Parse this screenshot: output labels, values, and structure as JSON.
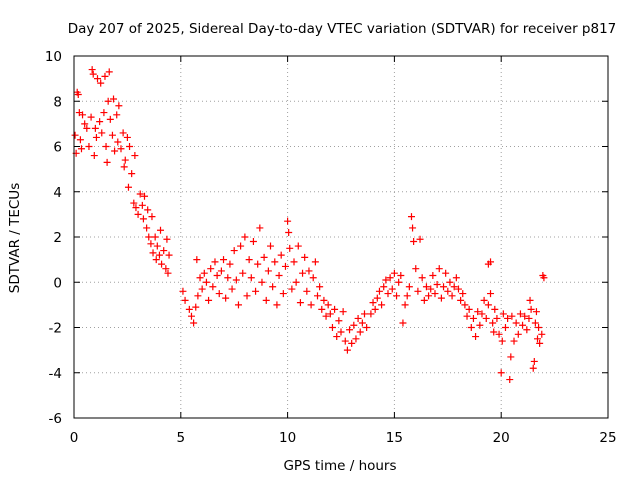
{
  "chart_data": {
    "type": "scatter",
    "title": "Day 207 of 2025, Sidereal Day-to-day VTEC variation (SDTVAR) for receiver p817",
    "xlabel": "GPS time / hours",
    "ylabel": "SDTVAR / TECUs",
    "xlim": [
      0,
      25
    ],
    "ylim": [
      -6,
      10
    ],
    "xticks": [
      0,
      5,
      10,
      15,
      20,
      25
    ],
    "yticks": [
      -6,
      -4,
      -2,
      0,
      2,
      4,
      6,
      8,
      10
    ],
    "xtick_labels": [
      "0",
      "5",
      "10",
      "15",
      "20",
      "25"
    ],
    "ytick_labels": [
      "-6",
      "-4",
      "-2",
      "0",
      "2",
      "4",
      "6",
      "8",
      "10"
    ],
    "grid": true,
    "marker": "plus",
    "color": "#ff0000",
    "series": [
      {
        "name": "SDTVAR",
        "points": [
          [
            0.05,
            6.5
          ],
          [
            0.1,
            5.7
          ],
          [
            0.15,
            8.4
          ],
          [
            0.2,
            8.3
          ],
          [
            0.25,
            7.5
          ],
          [
            0.3,
            6.3
          ],
          [
            0.35,
            5.9
          ],
          [
            0.4,
            7.4
          ],
          [
            0.5,
            7.0
          ],
          [
            0.6,
            6.8
          ],
          [
            0.7,
            6.0
          ],
          [
            0.8,
            7.3
          ],
          [
            0.85,
            9.4
          ],
          [
            0.9,
            9.2
          ],
          [
            0.95,
            5.6
          ],
          [
            1.0,
            6.8
          ],
          [
            1.05,
            6.4
          ],
          [
            1.1,
            9.0
          ],
          [
            1.2,
            7.1
          ],
          [
            1.25,
            8.8
          ],
          [
            1.3,
            6.6
          ],
          [
            1.4,
            7.5
          ],
          [
            1.45,
            9.1
          ],
          [
            1.5,
            6.0
          ],
          [
            1.55,
            5.3
          ],
          [
            1.6,
            8.0
          ],
          [
            1.65,
            9.3
          ],
          [
            1.7,
            7.2
          ],
          [
            1.8,
            6.5
          ],
          [
            1.85,
            8.1
          ],
          [
            1.9,
            5.8
          ],
          [
            2.0,
            7.4
          ],
          [
            2.05,
            6.2
          ],
          [
            2.1,
            7.8
          ],
          [
            2.2,
            5.9
          ],
          [
            2.3,
            6.6
          ],
          [
            2.35,
            5.1
          ],
          [
            2.4,
            5.4
          ],
          [
            2.5,
            6.4
          ],
          [
            2.55,
            4.2
          ],
          [
            2.6,
            6.0
          ],
          [
            2.7,
            4.8
          ],
          [
            2.8,
            3.5
          ],
          [
            2.85,
            5.6
          ],
          [
            2.9,
            3.3
          ],
          [
            3.0,
            3.0
          ],
          [
            3.1,
            3.9
          ],
          [
            3.2,
            3.4
          ],
          [
            3.25,
            2.8
          ],
          [
            3.3,
            3.8
          ],
          [
            3.4,
            2.4
          ],
          [
            3.45,
            3.2
          ],
          [
            3.5,
            2.0
          ],
          [
            3.6,
            1.7
          ],
          [
            3.65,
            2.9
          ],
          [
            3.7,
            1.3
          ],
          [
            3.8,
            2.0
          ],
          [
            3.85,
            1.0
          ],
          [
            3.9,
            1.6
          ],
          [
            4.0,
            1.2
          ],
          [
            4.05,
            2.3
          ],
          [
            4.1,
            0.8
          ],
          [
            4.2,
            1.4
          ],
          [
            4.3,
            0.6
          ],
          [
            4.35,
            1.9
          ],
          [
            4.4,
            0.4
          ],
          [
            4.45,
            1.2
          ],
          [
            5.1,
            -0.4
          ],
          [
            5.2,
            -0.8
          ],
          [
            5.4,
            -1.2
          ],
          [
            5.5,
            -1.5
          ],
          [
            5.6,
            -1.8
          ],
          [
            5.7,
            -1.1
          ],
          [
            5.75,
            1.0
          ],
          [
            5.8,
            -0.6
          ],
          [
            5.9,
            0.2
          ],
          [
            6.0,
            -0.3
          ],
          [
            6.1,
            0.4
          ],
          [
            6.2,
            0.0
          ],
          [
            6.3,
            -0.8
          ],
          [
            6.4,
            0.6
          ],
          [
            6.5,
            -0.2
          ],
          [
            6.6,
            0.9
          ],
          [
            6.7,
            0.3
          ],
          [
            6.8,
            -0.5
          ],
          [
            6.9,
            0.5
          ],
          [
            7.0,
            1.0
          ],
          [
            7.1,
            -0.7
          ],
          [
            7.2,
            0.2
          ],
          [
            7.3,
            0.8
          ],
          [
            7.4,
            -0.3
          ],
          [
            7.5,
            1.4
          ],
          [
            7.6,
            0.1
          ],
          [
            7.7,
            -1.0
          ],
          [
            7.8,
            1.6
          ],
          [
            7.9,
            0.4
          ],
          [
            8.0,
            2.0
          ],
          [
            8.1,
            -0.6
          ],
          [
            8.2,
            1.0
          ],
          [
            8.3,
            0.2
          ],
          [
            8.4,
            1.8
          ],
          [
            8.5,
            -0.4
          ],
          [
            8.6,
            0.8
          ],
          [
            8.7,
            2.4
          ],
          [
            8.8,
            0.0
          ],
          [
            8.9,
            1.1
          ],
          [
            9.0,
            -0.8
          ],
          [
            9.1,
            0.5
          ],
          [
            9.2,
            1.6
          ],
          [
            9.3,
            -0.2
          ],
          [
            9.4,
            0.9
          ],
          [
            9.5,
            -1.0
          ],
          [
            9.6,
            0.3
          ],
          [
            9.7,
            1.2
          ],
          [
            9.8,
            -0.5
          ],
          [
            9.9,
            0.7
          ],
          [
            10.0,
            2.7
          ],
          [
            10.05,
            2.2
          ],
          [
            10.1,
            1.5
          ],
          [
            10.2,
            -0.3
          ],
          [
            10.3,
            0.9
          ],
          [
            10.4,
            0.0
          ],
          [
            10.5,
            1.6
          ],
          [
            10.6,
            -0.9
          ],
          [
            10.7,
            0.4
          ],
          [
            10.8,
            1.1
          ],
          [
            10.9,
            -0.4
          ],
          [
            11.0,
            0.5
          ],
          [
            11.1,
            -1.0
          ],
          [
            11.2,
            0.2
          ],
          [
            11.3,
            0.9
          ],
          [
            11.4,
            -0.6
          ],
          [
            11.5,
            -0.2
          ],
          [
            11.6,
            -1.2
          ],
          [
            11.7,
            -0.8
          ],
          [
            11.8,
            -1.5
          ],
          [
            11.9,
            -1.0
          ],
          [
            12.0,
            -1.4
          ],
          [
            12.1,
            -2.0
          ],
          [
            12.2,
            -1.2
          ],
          [
            12.3,
            -2.4
          ],
          [
            12.4,
            -1.7
          ],
          [
            12.5,
            -2.2
          ],
          [
            12.6,
            -1.3
          ],
          [
            12.7,
            -2.6
          ],
          [
            12.8,
            -3.0
          ],
          [
            12.9,
            -2.1
          ],
          [
            13.0,
            -2.7
          ],
          [
            13.1,
            -1.9
          ],
          [
            13.2,
            -2.5
          ],
          [
            13.3,
            -1.6
          ],
          [
            13.4,
            -2.2
          ],
          [
            13.5,
            -1.8
          ],
          [
            13.6,
            -1.4
          ],
          [
            13.7,
            -2.0
          ],
          [
            13.9,
            -1.4
          ],
          [
            14.0,
            -0.9
          ],
          [
            14.1,
            -1.2
          ],
          [
            14.2,
            -0.7
          ],
          [
            14.3,
            -0.4
          ],
          [
            14.4,
            -1.0
          ],
          [
            14.5,
            -0.2
          ],
          [
            14.6,
            0.1
          ],
          [
            14.7,
            -0.5
          ],
          [
            14.8,
            0.2
          ],
          [
            14.9,
            -0.3
          ],
          [
            15.0,
            0.4
          ],
          [
            15.1,
            -0.6
          ],
          [
            15.2,
            0.0
          ],
          [
            15.3,
            0.3
          ],
          [
            15.4,
            -1.8
          ],
          [
            15.5,
            -1.0
          ],
          [
            15.6,
            -0.6
          ],
          [
            15.7,
            -0.2
          ],
          [
            15.8,
            2.9
          ],
          [
            15.85,
            2.4
          ],
          [
            15.9,
            1.8
          ],
          [
            16.0,
            0.6
          ],
          [
            16.1,
            -0.4
          ],
          [
            16.2,
            1.9
          ],
          [
            16.3,
            0.2
          ],
          [
            16.4,
            -0.8
          ],
          [
            16.5,
            -0.2
          ],
          [
            16.6,
            -0.6
          ],
          [
            16.7,
            -0.3
          ],
          [
            16.8,
            0.3
          ],
          [
            16.9,
            -0.5
          ],
          [
            17.0,
            -0.1
          ],
          [
            17.1,
            0.6
          ],
          [
            17.2,
            -0.7
          ],
          [
            17.3,
            -0.2
          ],
          [
            17.4,
            0.4
          ],
          [
            17.5,
            -0.4
          ],
          [
            17.6,
            0.0
          ],
          [
            17.7,
            -0.6
          ],
          [
            17.8,
            -0.2
          ],
          [
            17.9,
            0.2
          ],
          [
            18.0,
            -0.3
          ],
          [
            18.1,
            -0.8
          ],
          [
            18.2,
            -0.5
          ],
          [
            18.3,
            -1.0
          ],
          [
            18.4,
            -1.5
          ],
          [
            18.5,
            -1.2
          ],
          [
            18.6,
            -2.0
          ],
          [
            18.7,
            -1.6
          ],
          [
            18.8,
            -2.4
          ],
          [
            18.9,
            -1.3
          ],
          [
            19.0,
            -1.9
          ],
          [
            19.1,
            -1.4
          ],
          [
            19.2,
            -0.8
          ],
          [
            19.3,
            -1.6
          ],
          [
            19.4,
            -1.0
          ],
          [
            19.5,
            -0.5
          ],
          [
            19.6,
            -1.8
          ],
          [
            19.65,
            -2.2
          ],
          [
            19.7,
            -1.2
          ],
          [
            19.8,
            -1.6
          ],
          [
            19.9,
            -2.3
          ],
          [
            20.0,
            -4.0
          ],
          [
            20.05,
            -2.6
          ],
          [
            20.1,
            -1.4
          ],
          [
            20.2,
            -2.0
          ],
          [
            20.3,
            -1.6
          ],
          [
            20.4,
            -4.3
          ],
          [
            20.45,
            -3.3
          ],
          [
            20.5,
            -1.5
          ],
          [
            20.6,
            -2.6
          ],
          [
            20.7,
            -1.8
          ],
          [
            20.8,
            -2.3
          ],
          [
            20.9,
            -1.4
          ],
          [
            21.0,
            -1.9
          ],
          [
            21.1,
            -1.5
          ],
          [
            21.2,
            -2.1
          ],
          [
            21.3,
            -1.6
          ],
          [
            21.35,
            -0.8
          ],
          [
            21.4,
            -1.2
          ],
          [
            21.5,
            -3.8
          ],
          [
            21.55,
            -3.5
          ],
          [
            21.6,
            -1.8
          ],
          [
            21.65,
            -1.3
          ],
          [
            21.7,
            -2.5
          ],
          [
            21.75,
            -2.0
          ],
          [
            21.8,
            -2.7
          ],
          [
            21.9,
            -2.3
          ],
          [
            21.95,
            0.3
          ],
          [
            22.0,
            0.2
          ],
          [
            19.4,
            0.8
          ],
          [
            19.5,
            0.9
          ]
        ]
      }
    ]
  }
}
